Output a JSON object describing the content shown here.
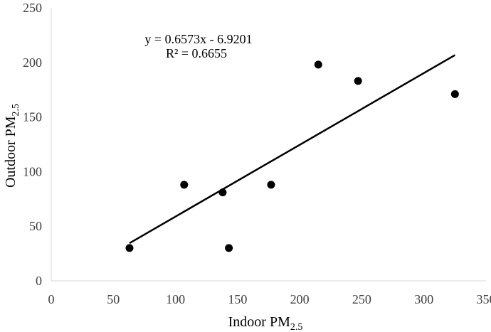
{
  "chart_data": {
    "type": "scatter",
    "xlabel": "Indoor PM",
    "xlabel_sub": "2.5",
    "ylabel": "Outdoor PM",
    "ylabel_sub": "2.5",
    "xlim": [
      0,
      350
    ],
    "ylim": [
      0,
      250
    ],
    "xticks": [
      "0",
      "50",
      "100",
      "150",
      "200",
      "250",
      "300",
      "350"
    ],
    "yticks": [
      "0",
      "50",
      "100",
      "150",
      "200",
      "250"
    ],
    "points": [
      {
        "x": 63,
        "y": 30
      },
      {
        "x": 107,
        "y": 88
      },
      {
        "x": 138,
        "y": 81
      },
      {
        "x": 143,
        "y": 30
      },
      {
        "x": 177,
        "y": 88
      },
      {
        "x": 215,
        "y": 198
      },
      {
        "x": 247,
        "y": 183
      },
      {
        "x": 325,
        "y": 171
      }
    ],
    "trendline": {
      "slope": 0.6573,
      "intercept": -6.9201,
      "x_range": [
        63,
        325
      ]
    },
    "equation": "y = 0.6573x - 6.9201",
    "r_squared": "R² = 0.6655",
    "grid": false,
    "legend": "none",
    "colors": {
      "points": "#000000",
      "trendline": "#000000",
      "axis": "#d9d9d9",
      "tick_text": "#404040"
    }
  }
}
